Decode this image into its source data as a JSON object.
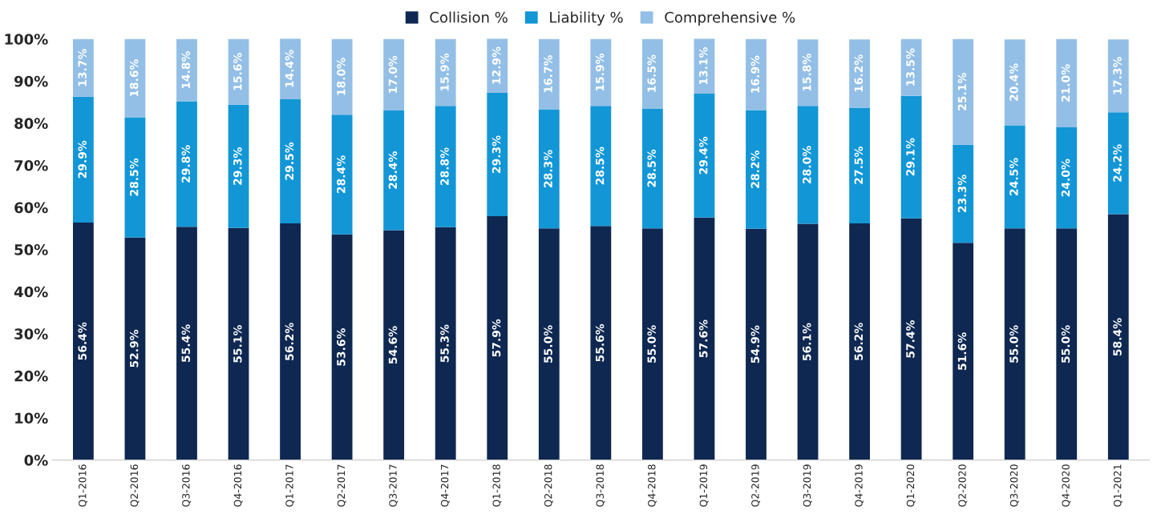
{
  "chart_data": {
    "type": "bar",
    "stacked": true,
    "categories": [
      "Q1-2016",
      "Q2-2016",
      "Q3-2016",
      "Q4-2016",
      "Q1-2017",
      "Q2-2017",
      "Q3-2017",
      "Q4-2017",
      "Q1-2018",
      "Q2-2018",
      "Q3-2018",
      "Q4-2018",
      "Q1-2019",
      "Q2-2019",
      "Q3-2019",
      "Q4-2019",
      "Q1-2020",
      "Q2-2020",
      "Q3-2020",
      "Q4-2020",
      "Q1-2021"
    ],
    "series": [
      {
        "name": "Collision %",
        "color": "#0f2851",
        "values": [
          56.4,
          52.9,
          55.4,
          55.1,
          56.2,
          53.6,
          54.6,
          55.3,
          57.9,
          55.0,
          55.6,
          55.0,
          57.6,
          54.9,
          56.1,
          56.2,
          57.4,
          51.6,
          55.0,
          55.0,
          58.4
        ],
        "value_labels": [
          "56.4%",
          "52.9%",
          "55.4%",
          "55.1%",
          "56.2%",
          "53.6%",
          "54.6%",
          "55.3%",
          "57.9%",
          "55.0%",
          "55.6%",
          "55.0%",
          "57.6%",
          "54.9%",
          "56.1%",
          "56.2%",
          "57.4%",
          "51.6%",
          "55.0%",
          "55.0%",
          "58.4%"
        ]
      },
      {
        "name": "Liability %",
        "color": "#1396d6",
        "values": [
          29.9,
          28.5,
          29.8,
          29.3,
          29.5,
          28.4,
          28.4,
          28.8,
          29.3,
          28.3,
          28.5,
          28.5,
          29.4,
          28.2,
          28.0,
          27.5,
          29.1,
          23.3,
          24.5,
          24.0,
          24.2
        ],
        "value_labels": [
          "29.9%",
          "28.5%",
          "29.8%",
          "29.3%",
          "29.5%",
          "28.4%",
          "28.4%",
          "28.8%",
          "29.3%",
          "28.3%",
          "28.5%",
          "28.5%",
          "29.4%",
          "28.2%",
          "28.0%",
          "27.5%",
          "29.1%",
          "23.3%",
          "24.5%",
          "24.0%",
          "24.2%"
        ]
      },
      {
        "name": "Comprehensive %",
        "color": "#93bfe6",
        "values": [
          13.7,
          18.6,
          14.8,
          15.6,
          14.4,
          18.0,
          17.0,
          15.9,
          12.9,
          16.7,
          15.9,
          16.5,
          13.1,
          16.9,
          15.8,
          16.2,
          13.5,
          25.1,
          20.4,
          21.0,
          17.3
        ],
        "value_labels": [
          "13.7%",
          "18.6%",
          "14.8%",
          "15.6%",
          "14.4%",
          "18.0%",
          "17.0%",
          "15.9%",
          "12.9%",
          "16.7%",
          "15.9%",
          "16.5%",
          "13.1%",
          "16.9%",
          "15.8%",
          "16.2%",
          "13.5%",
          "25.1%",
          "20.4%",
          "21.0%",
          "17.3%"
        ]
      }
    ],
    "ylim": [
      0,
      100.1
    ],
    "yticks": [
      {
        "value": 0,
        "label": "0%"
      },
      {
        "value": 10,
        "label": "10%"
      },
      {
        "value": 20,
        "label": "20%"
      },
      {
        "value": 30,
        "label": "30%"
      },
      {
        "value": 40,
        "label": "40%"
      },
      {
        "value": 50,
        "label": "50%"
      },
      {
        "value": 60,
        "label": "60%"
      },
      {
        "value": 70,
        "label": "70%"
      },
      {
        "value": 80,
        "label": "80%"
      },
      {
        "value": 90,
        "label": "90%"
      },
      {
        "value": 100,
        "label": "100%"
      }
    ],
    "grid": false,
    "legend": "top"
  }
}
